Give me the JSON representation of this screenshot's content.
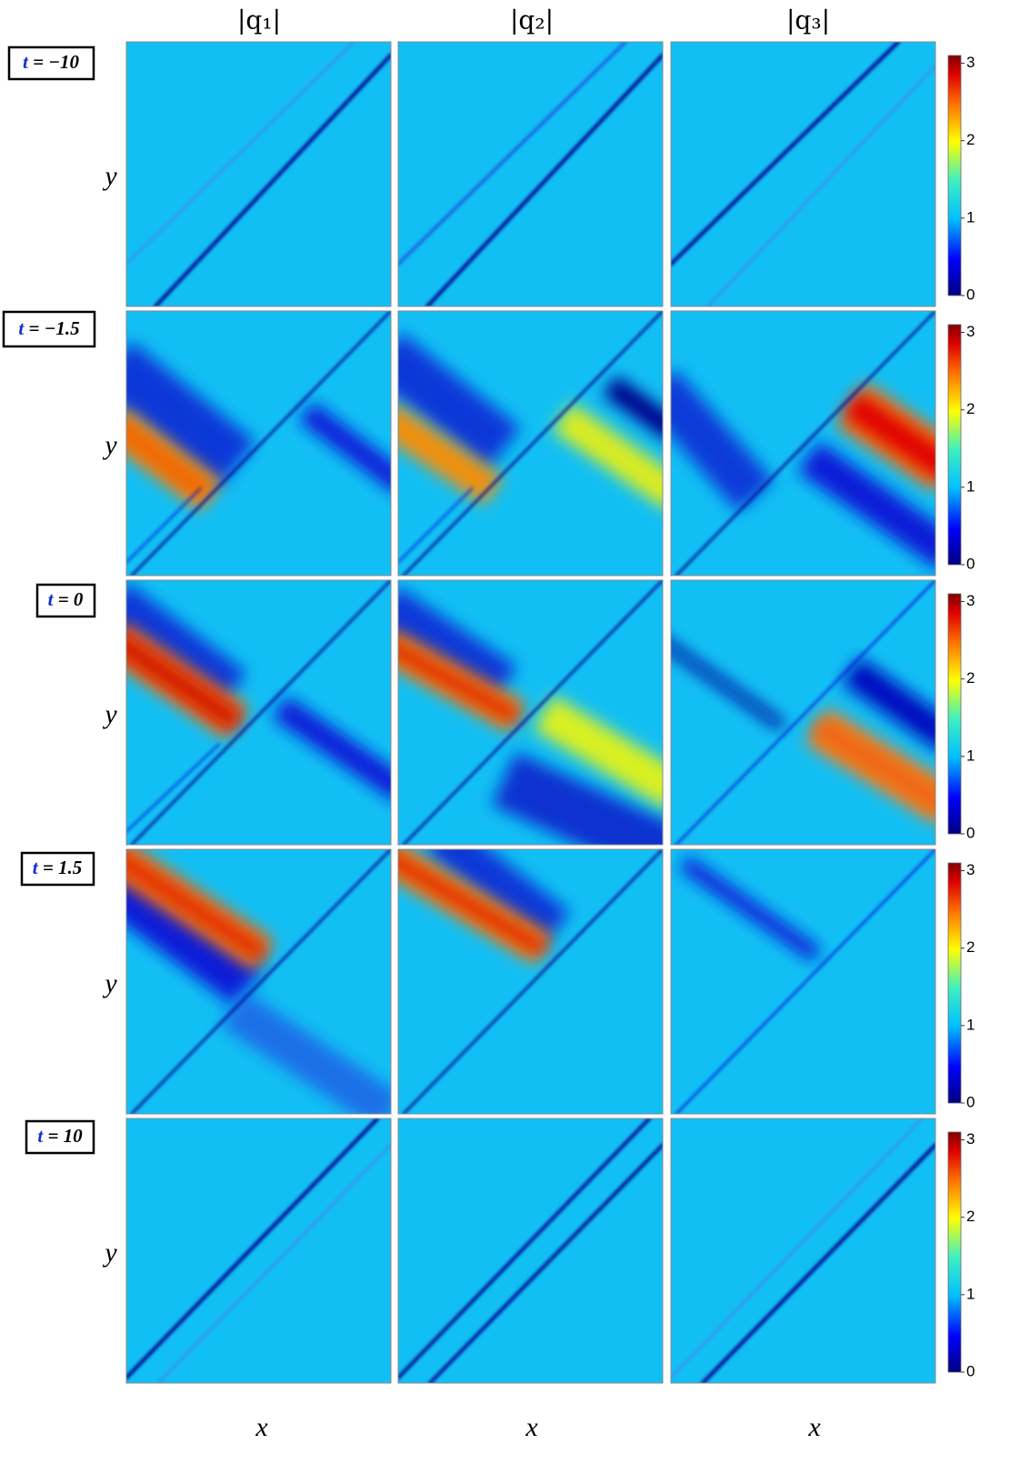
{
  "header": {
    "columns": [
      "|q₁|",
      "|q₂|",
      "|q₃|"
    ]
  },
  "rows": [
    {
      "label_var": "t",
      "label_rest": "= −10"
    },
    {
      "label_var": "t",
      "label_rest": "= −1.5"
    },
    {
      "label_var": "t",
      "label_rest": "= 0"
    },
    {
      "label_var": "t",
      "label_rest": "= 1.5"
    },
    {
      "label_var": "t",
      "label_rest": "= 10"
    }
  ],
  "x_label": "x",
  "y_label": "y",
  "colorbar": {
    "lim": [
      0,
      3.1
    ],
    "ticks": [
      0,
      1,
      2,
      3
    ]
  }
}
